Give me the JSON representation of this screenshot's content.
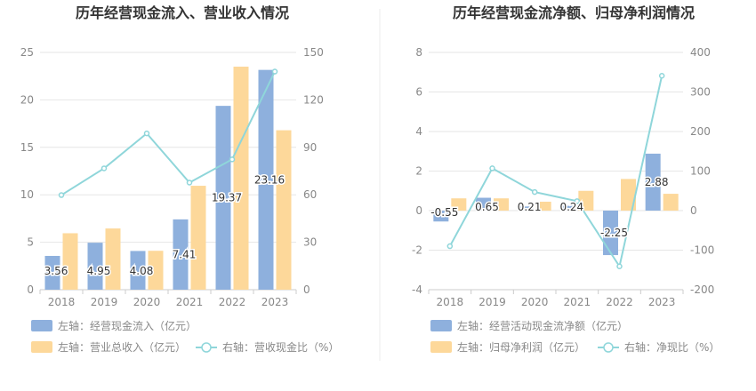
{
  "chart_data": [
    {
      "type": "bar",
      "title": "历年经营现金流入、营业收入情况",
      "categories": [
        "2018",
        "2019",
        "2020",
        "2021",
        "2022",
        "2023"
      ],
      "left_axis": {
        "min": 0,
        "max": 25,
        "ticks": [
          "0",
          "5",
          "10",
          "15",
          "20",
          "25"
        ]
      },
      "right_axis": {
        "min": 0,
        "max": 150,
        "ticks": [
          "0",
          "30",
          "60",
          "90",
          "120",
          "150"
        ]
      },
      "grid": true,
      "legend_position": "bottom",
      "series": [
        {
          "name": "左轴：经营现金流入（亿元）",
          "type": "bar",
          "axis": "left",
          "color": "#8eb0dd",
          "values": [
            3.56,
            4.95,
            4.08,
            7.41,
            19.37,
            23.16
          ],
          "labels": [
            "3.56",
            "4.95",
            "4.08",
            "7.41",
            "19.37",
            "23.16"
          ]
        },
        {
          "name": "左轴：营业总收入（亿元）",
          "type": "bar",
          "axis": "left",
          "color": "#fdd89a",
          "values": [
            5.95,
            6.45,
            4.1,
            10.95,
            23.5,
            16.8
          ]
        },
        {
          "name": "右轴：营收现金比（%）",
          "type": "line",
          "axis": "right",
          "color": "#8fd6da",
          "values": [
            59.8,
            76.7,
            98.8,
            67.7,
            82.4,
            137.9
          ]
        }
      ]
    },
    {
      "type": "bar",
      "title": "历年经营现金流净额、归母净利润情况",
      "categories": [
        "2018",
        "2019",
        "2020",
        "2021",
        "2022",
        "2023"
      ],
      "left_axis": {
        "min": -4,
        "max": 8,
        "ticks": [
          "-4",
          "-2",
          "0",
          "2",
          "4",
          "6",
          "8"
        ]
      },
      "right_axis": {
        "min": -200,
        "max": 400,
        "ticks": [
          "-200",
          "-100",
          "0",
          "100",
          "200",
          "300",
          "400"
        ]
      },
      "grid": true,
      "legend_position": "bottom",
      "series": [
        {
          "name": "左轴：经营活动现金流净额（亿元）",
          "type": "bar",
          "axis": "left",
          "color": "#8eb0dd",
          "values": [
            -0.55,
            0.65,
            0.21,
            0.24,
            -2.25,
            2.88
          ],
          "labels": [
            "-0.55",
            "0.65",
            "0.21",
            "0.24",
            "-2.25",
            "2.88"
          ]
        },
        {
          "name": "左轴：归母净利润（亿元）",
          "type": "bar",
          "axis": "left",
          "color": "#fdd89a",
          "values": [
            0.62,
            0.62,
            0.45,
            1.0,
            1.6,
            0.85
          ]
        },
        {
          "name": "右轴：净现比（%）",
          "type": "line",
          "axis": "right",
          "color": "#8fd6da",
          "values": [
            -90,
            107,
            47,
            24,
            -141,
            341
          ]
        }
      ]
    }
  ]
}
